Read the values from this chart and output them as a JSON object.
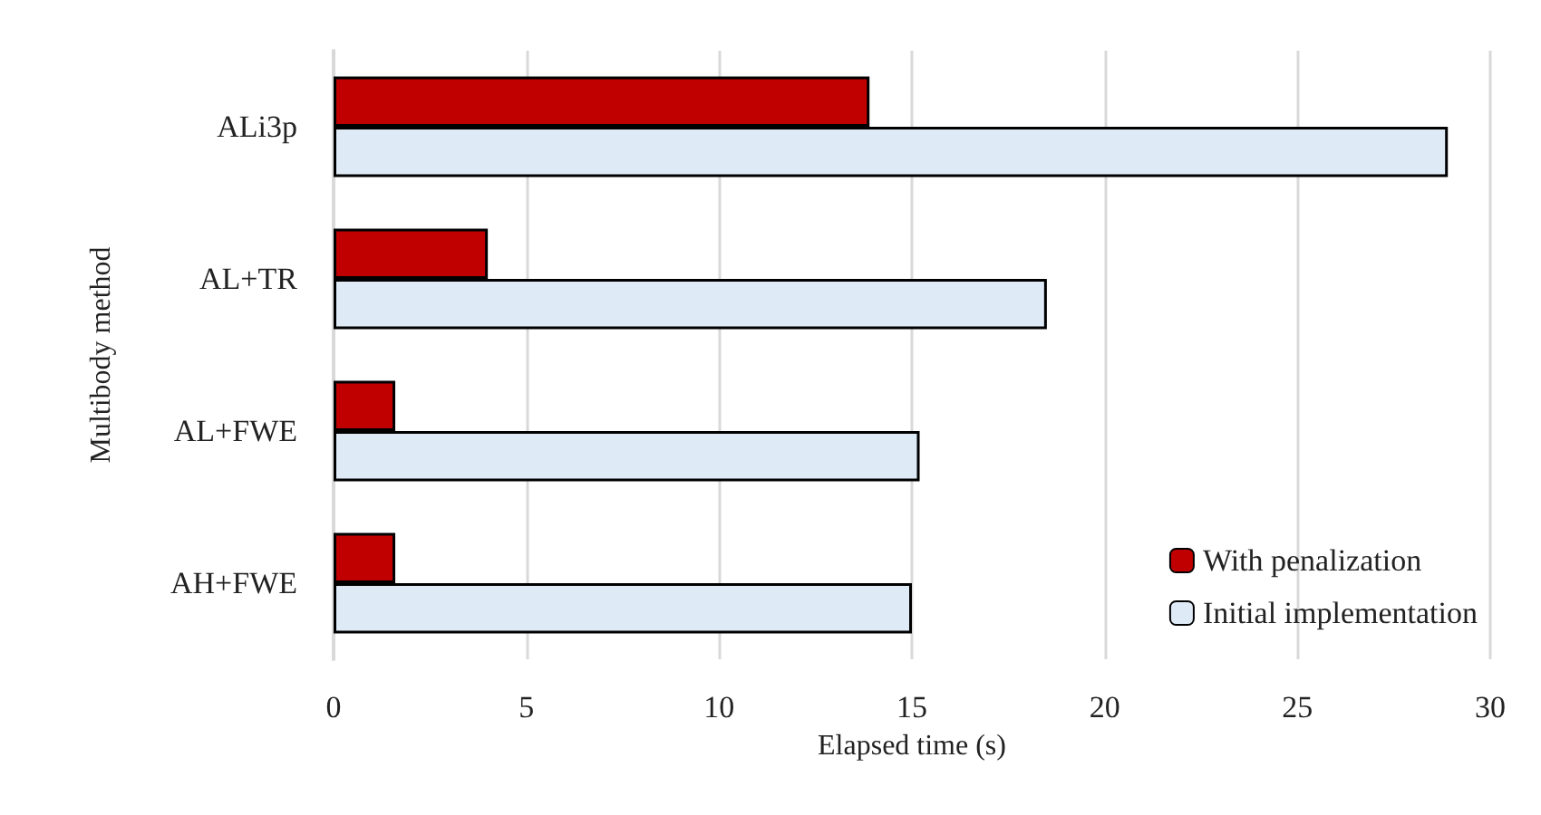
{
  "chart_data": {
    "type": "bar",
    "orientation": "horizontal",
    "xlabel": "Elapsed time (s)",
    "ylabel": "Multibody method",
    "categories": [
      "ALi3p",
      "AL+TR",
      "AL+FWE",
      "AH+FWE"
    ],
    "series": [
      {
        "name": "With penalization",
        "color": "#c00000",
        "values": [
          13.9,
          4.0,
          1.6,
          1.6
        ]
      },
      {
        "name": "Initial implementation",
        "color": "#deebf7",
        "values": [
          28.9,
          18.5,
          15.2,
          15.0
        ]
      }
    ],
    "xlim": [
      0,
      30
    ],
    "xticks": [
      0,
      5,
      10,
      15,
      20,
      25,
      30
    ],
    "grid": "x",
    "legend": "bottom right"
  }
}
